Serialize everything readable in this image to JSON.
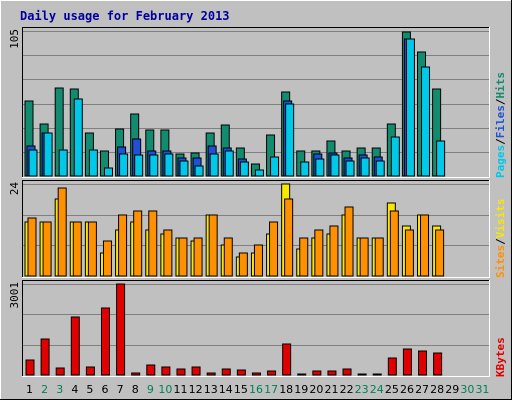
{
  "chart_data": {
    "type": "bar",
    "title": "Daily usage for February 2013",
    "categories": [
      "1",
      "2",
      "3",
      "4",
      "5",
      "6",
      "7",
      "8",
      "9",
      "10",
      "11",
      "12",
      "13",
      "14",
      "15",
      "16",
      "17",
      "18",
      "19",
      "20",
      "21",
      "22",
      "23",
      "24",
      "25",
      "26",
      "27",
      "28",
      "29",
      "30",
      "31"
    ],
    "weekend_days": [
      2,
      3,
      9,
      10,
      16,
      17,
      23,
      24,
      30,
      31
    ],
    "panels": [
      {
        "name": "top",
        "max_label": "105",
        "ylim": [
          0,
          105
        ],
        "legend": [
          {
            "text": "Pages",
            "color": "#00C8E8"
          },
          {
            "text": "/",
            "color": "#000000"
          },
          {
            "text": "Files",
            "color": "#2050D8"
          },
          {
            "text": "/",
            "color": "#000000"
          },
          {
            "text": "Hits",
            "color": "#138B6E"
          }
        ],
        "series": [
          {
            "name": "Hits",
            "color": "#138B6E",
            "values": [
              54,
              38,
              64,
              63,
              31,
              18,
              34,
              45,
              33,
              33,
              16,
              17,
              31,
              37,
              20,
              9,
              30,
              61,
              18,
              18,
              25,
              18,
              20,
              20,
              38,
              104,
              90,
              63,
              0,
              0,
              0
            ]
          },
          {
            "name": "Files",
            "color": "#2050D8",
            "values": [
              22,
              31,
              0,
              0,
              0,
              0,
              21,
              27,
              18,
              18,
              13,
              13,
              22,
              20,
              12,
              0,
              0,
              54,
              0,
              16,
              17,
              13,
              15,
              14,
              0,
              99,
              0,
              0,
              0,
              0,
              0
            ]
          },
          {
            "name": "Pages",
            "color": "#00C8E8",
            "values": [
              19,
              31,
              19,
              56,
              19,
              6,
              16,
              15,
              15,
              16,
              11,
              7,
              16,
              18,
              10,
              4,
              14,
              52,
              10,
              12,
              15,
              11,
              13,
              11,
              28,
              99,
              79,
              25,
              0,
              0,
              0
            ]
          }
        ]
      },
      {
        "name": "middle",
        "max_label": "24",
        "ylim": [
          0,
          24
        ],
        "legend": [
          {
            "text": "Sites",
            "color": "#FF9000"
          },
          {
            "text": "/",
            "color": "#000000"
          },
          {
            "text": "Visits",
            "color": "#F8E800"
          }
        ],
        "series": [
          {
            "name": "Visits",
            "color": "#F8E800",
            "values": [
              14,
              14,
              20,
              14,
              14,
              6,
              12,
              14,
              12,
              11,
              10,
              9,
              16,
              8,
              5,
              6,
              11,
              24,
              7,
              10,
              11,
              16,
              10,
              10,
              19,
              13,
              16,
              13,
              0,
              0,
              0
            ]
          },
          {
            "name": "Sites",
            "color": "#FF9000",
            "values": [
              15,
              14,
              23,
              14,
              14,
              9,
              16,
              17,
              17,
              12,
              10,
              10,
              16,
              10,
              6,
              8,
              14,
              20,
              10,
              12,
              13,
              18,
              10,
              10,
              17,
              12,
              16,
              12,
              0,
              0,
              0
            ]
          }
        ]
      },
      {
        "name": "bottom",
        "max_label": "3001",
        "ylim": [
          0,
          3001
        ],
        "legend": [
          {
            "text": "KBytes",
            "color": "#E00000"
          }
        ],
        "series": [
          {
            "name": "KBytes",
            "color": "#E00000",
            "values": [
              480,
              1180,
              220,
              1900,
              250,
              2200,
              3001,
              70,
              330,
              250,
              200,
              260,
              50,
              200,
              150,
              50,
              140,
              1010,
              40,
              140,
              140,
              210,
              40,
              40,
              560,
              850,
              800,
              730,
              0,
              0,
              0
            ]
          }
        ]
      }
    ]
  }
}
